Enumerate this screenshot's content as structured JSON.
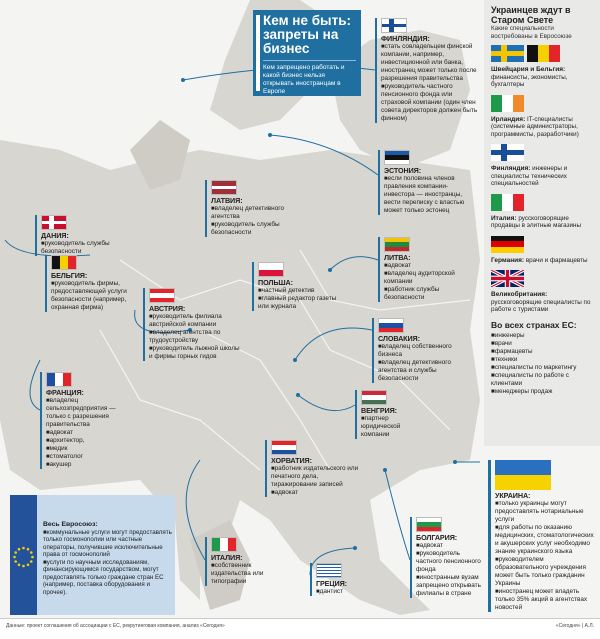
{
  "title": {
    "heading": "Кем не быть: запреты на бизнес",
    "subtitle": "Кем запрещено работать и какой бизнес нельзя открывать иностранцам в Европе"
  },
  "countries": [
    {
      "id": "finland",
      "name": "Финляндия:",
      "flag": {
        "type": "cross",
        "bg": "#ffffff",
        "cross": "#1a4d9a"
      },
      "items": [
        "стать совладельцем финской компании, например, инвестиционной или банка, иностранец может только после разрешения правительства",
        "руководитель частного пенсионного фонда или страховой компании (один член совета директоров должен быть финном)"
      ]
    },
    {
      "id": "estonia",
      "name": "Эстония:",
      "flag": {
        "type": "h",
        "colors": [
          "#1a5aa6",
          "#111111",
          "#ffffff"
        ]
      },
      "items": [
        "если половина членов правления компании-инвестора — иностранцы, вести переписку с властью может только эстонец"
      ]
    },
    {
      "id": "lithuania",
      "name": "Литва:",
      "flag": {
        "type": "h",
        "colors": [
          "#f4c300",
          "#1f8a3b",
          "#c1272d"
        ]
      },
      "items": [
        "адвокат",
        "владелец аудиторской компании",
        "работник службы безопасности"
      ]
    },
    {
      "id": "denmark",
      "name": "Дания:",
      "flag": {
        "type": "cross",
        "bg": "#c8102e",
        "cross": "#ffffff"
      },
      "items": [
        "руководитель службы безопасности"
      ]
    },
    {
      "id": "latvia",
      "name": "Латвия:",
      "flag": {
        "type": "h",
        "colors": [
          "#9e3039",
          "#9e3039",
          "#ffffff",
          "#9e3039",
          "#9e3039"
        ]
      },
      "items": [
        "владелец детективного агентства",
        "руководитель службы безопасности"
      ]
    },
    {
      "id": "belgium",
      "name": "Бельгия:",
      "flag": {
        "type": "v",
        "colors": [
          "#111111",
          "#f5d000",
          "#e3242b"
        ]
      },
      "items": [
        "руководитель фирмы, предоставляющей услуги безопасности (например, охранная фирма)"
      ]
    },
    {
      "id": "poland",
      "name": "Польша:",
      "flag": {
        "type": "h",
        "colors": [
          "#ffffff",
          "#dc143c"
        ]
      },
      "items": [
        "частный детектив",
        "главный редактор газеты или журнала"
      ]
    },
    {
      "id": "austria",
      "name": "Австрия:",
      "flag": {
        "type": "h",
        "colors": [
          "#e3242b",
          "#ffffff",
          "#e3242b"
        ]
      },
      "items": [
        "руководитель филиала австрийской компании",
        "владелец агентства по трудоустройству",
        "руководитель лыжной школы и фирмы горных гидов"
      ]
    },
    {
      "id": "france",
      "name": "Франция:",
      "flag": {
        "type": "v",
        "colors": [
          "#1f4fa0",
          "#ffffff",
          "#e3242b"
        ]
      },
      "items": [
        "владелец сельхозпредприятия — только с разрешения правительства",
        "адвокат",
        "архитектор,",
        "медик",
        "стоматолог",
        "акушер"
      ]
    },
    {
      "id": "slovakia",
      "name": "Словакия:",
      "flag": {
        "type": "h",
        "colors": [
          "#ffffff",
          "#1f4fa0",
          "#e3242b"
        ]
      },
      "items": [
        "владелец собственного бизнеса",
        "владелец детективного агентства и службы безопасности"
      ]
    },
    {
      "id": "hungary",
      "name": "Венгрия:",
      "flag": {
        "type": "h",
        "colors": [
          "#ce2939",
          "#ffffff",
          "#477050"
        ]
      },
      "items": [
        "партнер юридической компании"
      ]
    },
    {
      "id": "croatia",
      "name": "Хорватия:",
      "flag": {
        "type": "h",
        "colors": [
          "#e3242b",
          "#ffffff",
          "#1f4fa0"
        ]
      },
      "items": [
        "работник издательского или печатного дела, тиражирование записей",
        "адвокат"
      ]
    },
    {
      "id": "italy",
      "name": "Италия:",
      "flag": {
        "type": "v",
        "colors": [
          "#1f9a4a",
          "#ffffff",
          "#e3242b"
        ]
      },
      "items": [
        "собственник издательства или типографии"
      ]
    },
    {
      "id": "greece",
      "name": "Греция:",
      "flag": {
        "type": "h",
        "colors": [
          "#1f5fb0",
          "#ffffff",
          "#1f5fb0",
          "#ffffff",
          "#1f5fb0",
          "#ffffff",
          "#1f5fb0",
          "#ffffff",
          "#1f5fb0"
        ]
      },
      "items": [
        "дантист"
      ]
    },
    {
      "id": "bulgaria",
      "name": "Болгария:",
      "flag": {
        "type": "h",
        "colors": [
          "#ffffff",
          "#1f9a4a",
          "#e3242b"
        ]
      },
      "items": [
        "адвокат",
        "руководитель частного пенсионного фонда",
        "иностранным вузам запрещено открывать филиалы в стране"
      ]
    },
    {
      "id": "ukraine",
      "name": "Украина:",
      "flag": {
        "type": "h",
        "colors": [
          "#2b6fc0",
          "#f6d200"
        ]
      },
      "items": [
        "только украинцы могут предоставлять нотариальные услуги",
        "для работы по оказанию медицинских, стоматологических и акушерских услуг необходимо знание украинского языка",
        "руководителем образовательного учреждения может быть только гражданин Украины",
        "иностранец может владеть только 35% акций в агентствах новостей"
      ]
    }
  ],
  "sidebar": {
    "heading": "Украинцев ждут в Старом Свете",
    "subtitle": "Какие специальности востребованы в Евросоюзе",
    "demands": [
      {
        "country": "Швейцария и Бельгия:",
        "jobs": "финансисты, экономисты, бухгалтеры",
        "flags": [
          {
            "type": "cross",
            "bg": "#1f6fb5",
            "cross": "#f5c400"
          },
          {
            "type": "v",
            "colors": [
              "#111111",
              "#f5d000",
              "#e3242b"
            ]
          }
        ]
      },
      {
        "country": "Ирландия:",
        "jobs": "IT-специалисты (системные администраторы, программисты, разработчики)",
        "flags": [
          {
            "type": "v",
            "colors": [
              "#1f9a4a",
              "#ffffff",
              "#f08a2b"
            ]
          }
        ]
      },
      {
        "country": "Финляндия:",
        "jobs": "инженеры и специалисты технических специальностей",
        "flags": [
          {
            "type": "cross",
            "bg": "#ffffff",
            "cross": "#1a4d9a"
          }
        ]
      },
      {
        "country": "Италия:",
        "jobs": "русскоговорящие продавцы в элитные магазины",
        "flags": [
          {
            "type": "v",
            "colors": [
              "#1f9a4a",
              "#ffffff",
              "#e3242b"
            ]
          }
        ]
      },
      {
        "country": "Германия:",
        "jobs": "врачи и фармацевты",
        "flags": [
          {
            "type": "h",
            "colors": [
              "#111111",
              "#dd0000",
              "#ffce00"
            ]
          }
        ]
      },
      {
        "country": "Великобритания:",
        "jobs": "русскоговорящие специалисты по работе с туристами",
        "flags": [
          {
            "type": "uk"
          }
        ]
      }
    ],
    "all_heading": "Во всех странах ЕС:",
    "all_items": [
      "инженеры",
      "врачи",
      "фармацевты",
      "техники",
      "специалисты по маркетингу",
      "специалисты по работе с клиентами",
      "менеджеры продаж"
    ]
  },
  "eu": {
    "name": "Весь Евросоюз:",
    "items": [
      "коммунальные услуги могут предоставлять только госмонополии или частные операторы, получившие исключительные права от госмонополий",
      "услуги по научным исследованиям, финансирующимся государством, могут предоставлять только граждане стран ЕС (например, поставка оборудования и прочее)."
    ]
  },
  "footer": {
    "source": "Данные: проект соглашения об ассоциации с ЕС, рекрутинговая компания, анализ «Сегодня»",
    "credit": "«Сегодня» | А.Л."
  },
  "colors": {
    "accent": "#1f6fa0",
    "land": "#d8d6d0",
    "sea": "#c7daeb",
    "sidebar": "#e9e9e7"
  }
}
